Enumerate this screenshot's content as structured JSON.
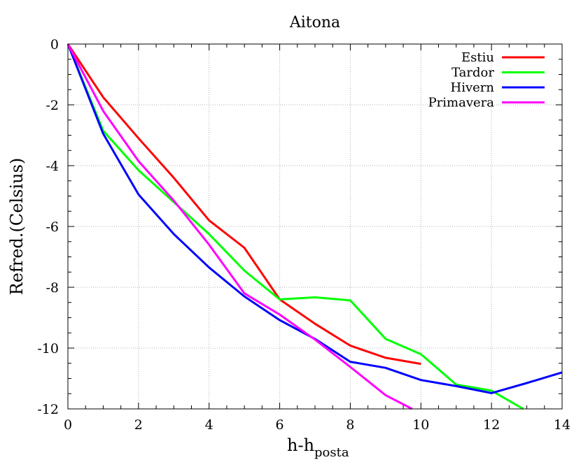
{
  "chart_data": {
    "type": "line",
    "title": "Aitona",
    "xlabel": "h-h",
    "xlabel_sub": "posta",
    "ylabel": "Refred.(Celsius)",
    "xlim": [
      0,
      14
    ],
    "ylim": [
      -12,
      0
    ],
    "xticks": [
      0,
      2,
      4,
      6,
      8,
      10,
      12,
      14
    ],
    "yticks": [
      0,
      -2,
      -4,
      -6,
      -8,
      -10,
      -12
    ],
    "grid": true,
    "legend_position": "top-right",
    "series": [
      {
        "name": "Estiu",
        "color": "#ff0000",
        "x": [
          0,
          1,
          2,
          3,
          4,
          5,
          6,
          7,
          8,
          9,
          10
        ],
        "y": [
          0,
          -1.75,
          -3.1,
          -4.4,
          -5.8,
          -6.7,
          -8.4,
          -9.2,
          -9.92,
          -10.32,
          -10.52
        ]
      },
      {
        "name": "Tardor",
        "color": "#00ff00",
        "x": [
          0,
          1,
          2,
          3,
          4,
          5,
          6,
          7,
          8,
          9,
          10,
          11,
          12,
          12.9
        ],
        "y": [
          0,
          -2.85,
          -4.15,
          -5.2,
          -6.25,
          -7.45,
          -8.4,
          -8.33,
          -8.43,
          -9.7,
          -10.2,
          -11.2,
          -11.4,
          -12.0
        ]
      },
      {
        "name": "Hivern",
        "color": "#0000ff",
        "x": [
          0,
          1,
          2,
          3,
          4,
          5,
          6,
          7,
          8,
          9,
          10,
          11,
          12,
          13,
          14
        ],
        "y": [
          0,
          -2.95,
          -4.95,
          -6.25,
          -7.35,
          -8.3,
          -9.08,
          -9.7,
          -10.45,
          -10.65,
          -11.05,
          -11.25,
          -11.48,
          -11.15,
          -10.8
        ]
      },
      {
        "name": "Primavera",
        "color": "#ff00ff",
        "x": [
          0,
          1,
          2,
          3,
          4,
          5,
          6,
          7,
          8,
          9,
          9.75
        ],
        "y": [
          0,
          -2.2,
          -3.85,
          -5.15,
          -6.6,
          -8.2,
          -8.9,
          -9.72,
          -10.62,
          -11.55,
          -12.0
        ]
      }
    ]
  }
}
